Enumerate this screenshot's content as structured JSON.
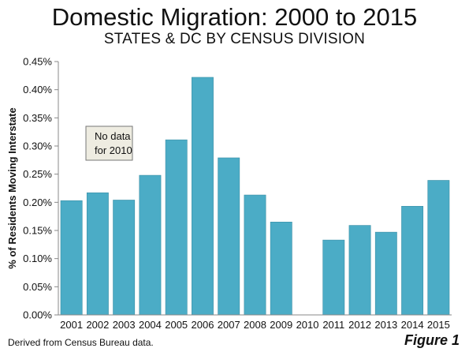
{
  "figure": {
    "title": "Domestic Migration: 2000 to 2015",
    "subtitle": "STATES & DC BY CENSUS DIVISION",
    "source_note": "Derived from Census Bureau data.",
    "figure_label": "Figure 1"
  },
  "chart_data": {
    "type": "bar",
    "categories": [
      "2001",
      "2002",
      "2003",
      "2004",
      "2005",
      "2006",
      "2007",
      "2008",
      "2009",
      "2010",
      "2011",
      "2012",
      "2013",
      "2014",
      "2015"
    ],
    "values": [
      0.203,
      0.217,
      0.204,
      0.248,
      0.311,
      0.422,
      0.279,
      0.213,
      0.165,
      null,
      0.133,
      0.159,
      0.147,
      0.193,
      0.239
    ],
    "xlabel": "",
    "ylabel": "% of Residents Moving Interstate",
    "ylim": [
      0,
      0.45
    ],
    "yticks": [
      {
        "value": 0.0,
        "label": "0.00%"
      },
      {
        "value": 0.05,
        "label": "0.05%"
      },
      {
        "value": 0.1,
        "label": "0.10%"
      },
      {
        "value": 0.15,
        "label": "0.15%"
      },
      {
        "value": 0.2,
        "label": "0.20%"
      },
      {
        "value": 0.25,
        "label": "0.25%"
      },
      {
        "value": 0.3,
        "label": "0.30%"
      },
      {
        "value": 0.35,
        "label": "0.35%"
      },
      {
        "value": 0.4,
        "label": "0.40%"
      },
      {
        "value": 0.45,
        "label": "0.45%"
      }
    ],
    "grid": false,
    "legend": "none",
    "annotation": {
      "lines": [
        "No data",
        "for 2010"
      ]
    },
    "colors": {
      "bar_fill": "#4bacc6",
      "bar_stroke": "#3b8fa6",
      "axis": "#888888",
      "annotation_fill": "#eeece1",
      "annotation_stroke": "#777777"
    }
  }
}
